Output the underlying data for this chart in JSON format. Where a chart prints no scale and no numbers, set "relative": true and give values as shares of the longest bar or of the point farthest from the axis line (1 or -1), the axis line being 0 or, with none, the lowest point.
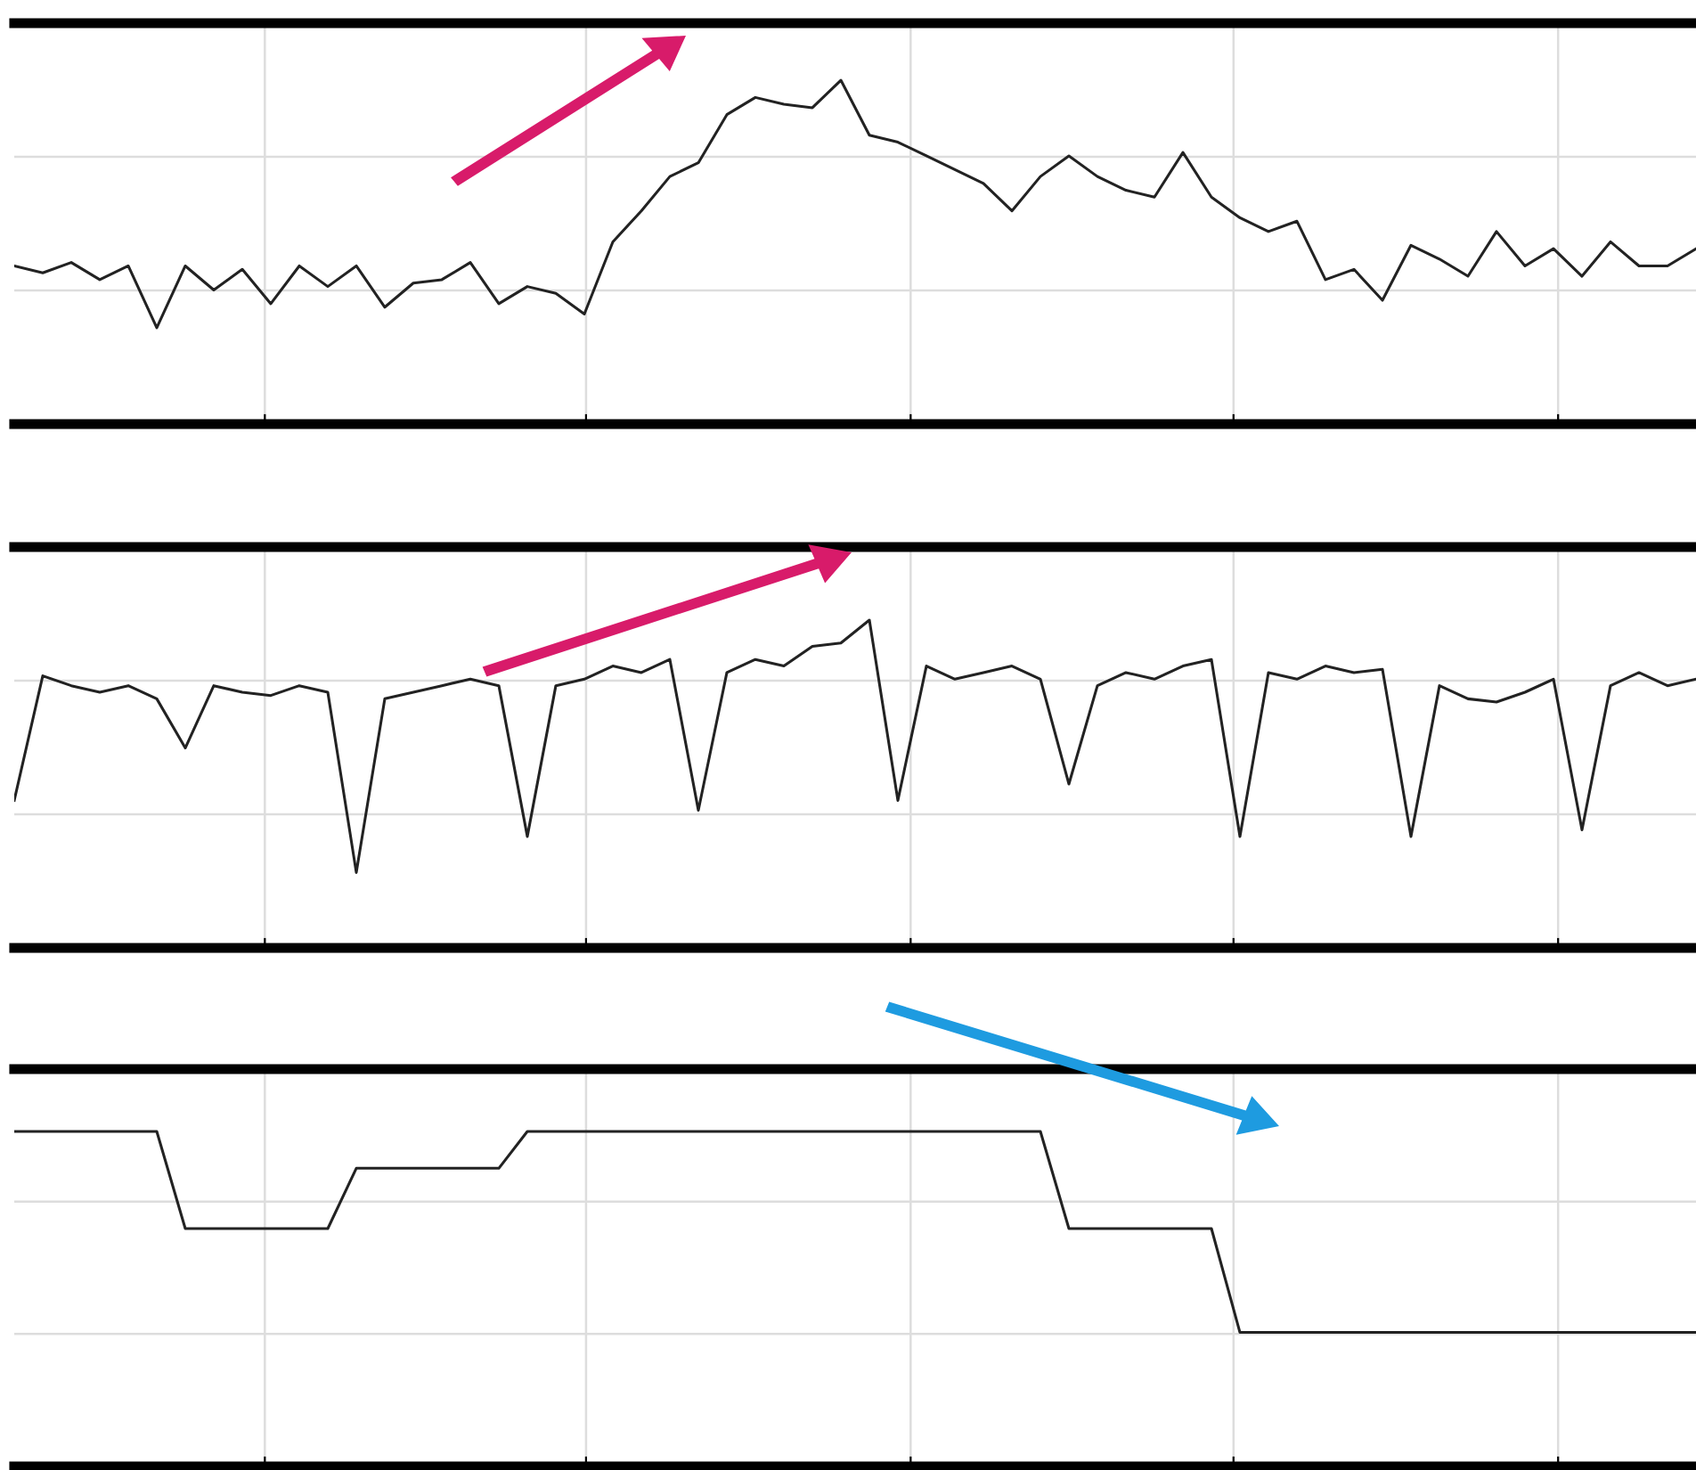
{
  "chart_data": [
    {
      "type": "line",
      "relative": true,
      "grid": true,
      "categories": [
        null,
        null,
        null,
        null,
        null,
        null,
        null,
        null,
        null,
        null,
        null,
        null,
        null,
        null,
        null,
        null,
        null,
        null,
        null,
        null,
        null,
        null,
        null,
        null,
        null,
        null,
        null,
        null,
        null,
        null,
        null,
        null,
        null,
        null,
        null,
        null,
        null,
        null,
        null,
        null,
        null,
        null,
        null,
        null,
        null,
        null,
        null,
        null,
        null,
        null,
        null,
        null,
        null,
        null,
        null,
        null,
        null,
        null,
        null,
        null
      ],
      "series": [
        {
          "color": "#222222",
          "values": [
            0.46,
            0.44,
            0.47,
            0.42,
            0.46,
            0.28,
            0.46,
            0.39,
            0.45,
            0.35,
            0.46,
            0.4,
            0.46,
            0.34,
            0.41,
            0.42,
            0.47,
            0.35,
            0.4,
            0.38,
            0.32,
            0.53,
            0.62,
            0.72,
            0.76,
            0.9,
            0.95,
            0.93,
            0.92,
            1.0,
            0.84,
            0.82,
            0.78,
            0.74,
            0.7,
            0.62,
            0.72,
            0.78,
            0.72,
            0.68,
            0.66,
            0.79,
            0.66,
            0.6,
            0.56,
            0.59,
            0.42,
            0.45,
            0.36,
            0.52,
            0.48,
            0.43,
            0.56,
            0.46,
            0.51,
            0.43,
            0.53,
            0.46,
            0.46,
            0.51
          ]
        }
      ]
    },
    {
      "type": "line",
      "relative": true,
      "grid": true,
      "categories": [
        null,
        null,
        null,
        null,
        null,
        null,
        null,
        null,
        null,
        null,
        null,
        null,
        null,
        null,
        null,
        null,
        null,
        null,
        null,
        null,
        null,
        null,
        null,
        null,
        null,
        null,
        null,
        null,
        null,
        null,
        null,
        null,
        null,
        null,
        null,
        null,
        null,
        null,
        null,
        null,
        null,
        null,
        null,
        null,
        null,
        null,
        null,
        null,
        null,
        null,
        null,
        null,
        null,
        null,
        null,
        null,
        null,
        null,
        null,
        null
      ],
      "series": [
        {
          "color": "#222222",
          "values": [
            0.45,
            0.83,
            0.8,
            0.78,
            0.8,
            0.76,
            0.61,
            0.8,
            0.78,
            0.77,
            0.8,
            0.78,
            0.23,
            0.76,
            0.78,
            0.8,
            0.82,
            0.8,
            0.34,
            0.8,
            0.82,
            0.86,
            0.84,
            0.88,
            0.42,
            0.84,
            0.88,
            0.86,
            0.92,
            0.93,
            1.0,
            0.45,
            0.86,
            0.82,
            0.84,
            0.86,
            0.82,
            0.5,
            0.8,
            0.84,
            0.82,
            0.86,
            0.88,
            0.34,
            0.84,
            0.82,
            0.86,
            0.84,
            0.85,
            0.34,
            0.8,
            0.76,
            0.75,
            0.78,
            0.82,
            0.36,
            0.8,
            0.84,
            0.8,
            0.82
          ]
        }
      ]
    },
    {
      "type": "line",
      "relative": true,
      "grid": true,
      "categories": [
        null,
        null,
        null,
        null,
        null,
        null,
        null,
        null,
        null,
        null,
        null,
        null,
        null,
        null,
        null,
        null,
        null,
        null,
        null,
        null,
        null,
        null,
        null,
        null,
        null,
        null,
        null,
        null,
        null,
        null,
        null,
        null,
        null,
        null,
        null,
        null,
        null,
        null,
        null,
        null,
        null,
        null,
        null,
        null,
        null,
        null,
        null,
        null,
        null,
        null,
        null,
        null,
        null,
        null,
        null,
        null,
        null,
        null,
        null,
        null
      ],
      "series": [
        {
          "color": "#222222",
          "values": [
            1.0,
            1.0,
            1.0,
            1.0,
            1.0,
            1.0,
            0.71,
            0.71,
            0.71,
            0.71,
            0.71,
            0.71,
            0.89,
            0.89,
            0.89,
            0.89,
            0.89,
            0.89,
            1.0,
            1.0,
            1.0,
            1.0,
            1.0,
            1.0,
            1.0,
            1.0,
            1.0,
            1.0,
            1.0,
            1.0,
            1.0,
            1.0,
            1.0,
            1.0,
            1.0,
            1.0,
            1.0,
            0.71,
            0.71,
            0.71,
            0.71,
            0.71,
            0.71,
            0.4,
            0.4,
            0.4,
            0.4,
            0.4,
            0.4,
            0.4,
            0.4,
            0.4,
            0.4,
            0.4,
            0.4,
            0.4,
            0.4,
            0.4,
            0.4,
            0.4
          ]
        }
      ]
    }
  ]
}
